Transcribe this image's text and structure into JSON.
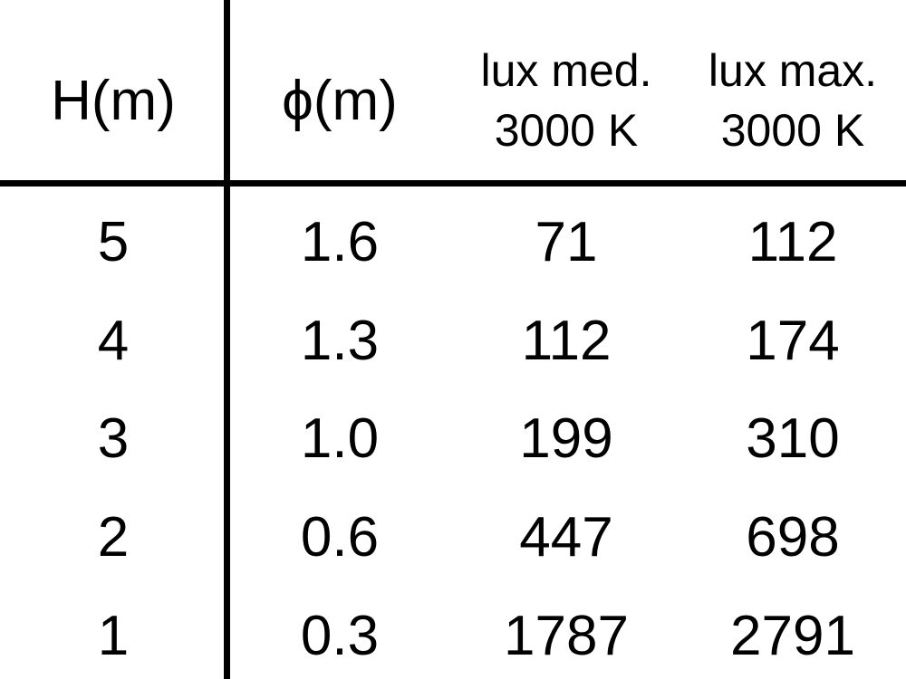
{
  "chart_data": {
    "type": "table",
    "title": "",
    "columns": [
      "H(m)",
      "ϕ(m)",
      "lux med. 3000 K",
      "lux max. 3000 K"
    ],
    "rows": [
      [
        "5",
        "1.6",
        "71",
        "112"
      ],
      [
        "4",
        "1.3",
        "112",
        "174"
      ],
      [
        "3",
        "1.0",
        "199",
        "310"
      ],
      [
        "2",
        "0.6",
        "447",
        "698"
      ],
      [
        "1",
        "0.3",
        "1787",
        "2791"
      ]
    ]
  },
  "header": {
    "h_label": "H(m)",
    "phi_label": "ϕ(m)",
    "lux_med_line1": "lux med.",
    "lux_med_line2": "3000 K",
    "lux_max_line1": "lux max.",
    "lux_max_line2": "3000 K"
  },
  "rows": [
    {
      "h": "5",
      "phi": "1.6",
      "lux_med": "71",
      "lux_max": "112"
    },
    {
      "h": "4",
      "phi": "1.3",
      "lux_med": "112",
      "lux_max": "174"
    },
    {
      "h": "3",
      "phi": "1.0",
      "lux_med": "199",
      "lux_max": "310"
    },
    {
      "h": "2",
      "phi": "0.6",
      "lux_med": "447",
      "lux_max": "698"
    },
    {
      "h": "1",
      "phi": "0.3",
      "lux_med": "1787",
      "lux_max": "2791"
    }
  ],
  "colors": {
    "text": "#000000",
    "lines": "#000000",
    "background": "#ffffff"
  }
}
